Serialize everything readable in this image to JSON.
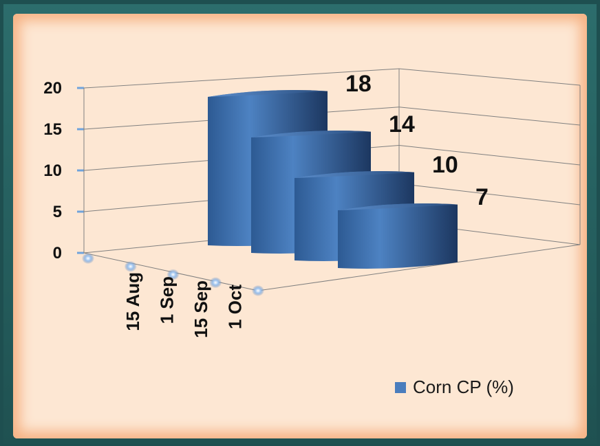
{
  "chart_data": {
    "type": "bar",
    "categories": [
      "15 Aug",
      "1 Sep",
      "15 Sep",
      "1 Oct"
    ],
    "series": [
      {
        "name": "Corn CP (%)",
        "values": [
          18,
          14,
          10,
          7
        ]
      }
    ],
    "y_ticks": [
      "0",
      "5",
      "10",
      "15",
      "20"
    ],
    "data_labels": [
      "18",
      "14",
      "10",
      "7"
    ],
    "ylim": [
      0,
      20
    ],
    "grid": true,
    "legend": "bottom-right",
    "colors": {
      "bar": "#4a7dbd",
      "bar_dark": "#1f3d66",
      "legend_swatch": "#4a7dbd"
    }
  },
  "legend": {
    "label": "Corn CP (%)"
  }
}
